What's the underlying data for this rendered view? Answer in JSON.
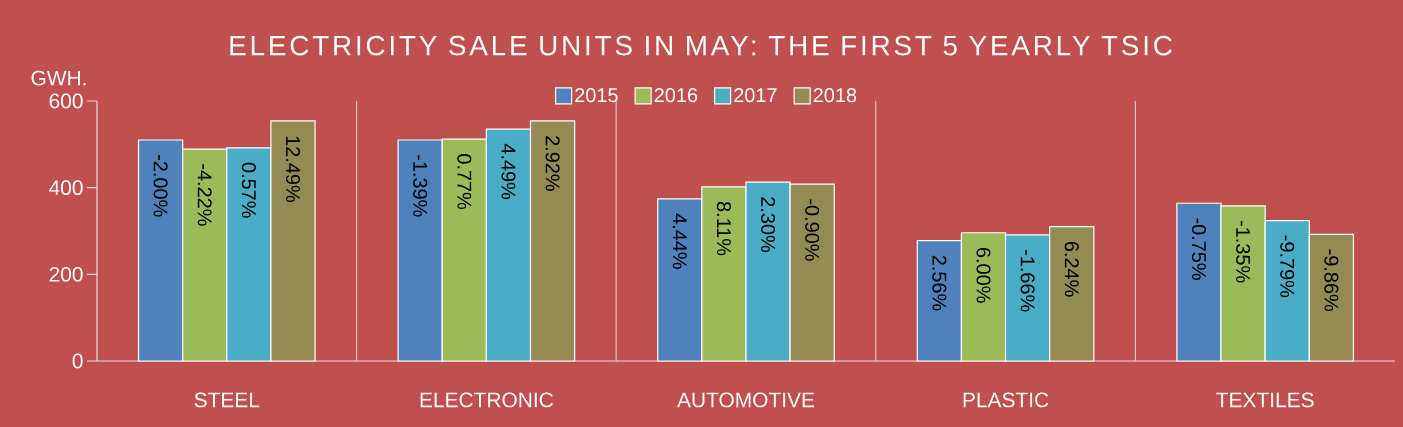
{
  "chart_data": {
    "type": "bar",
    "title": "ELECTRICITY SALE UNITS IN MAY: THE FIRST 5 YEARLY TSIC",
    "ylabel": "GWH.",
    "categories": [
      "STEEL",
      "ELECTRONIC",
      "AUTOMOTIVE",
      "PLASTIC",
      "TEXTILES"
    ],
    "series": [
      {
        "name": "2015",
        "color": "#4f81bd",
        "values": [
          510,
          510,
          374,
          278,
          364
        ]
      },
      {
        "name": "2016",
        "color": "#9bbb59",
        "values": [
          489,
          512,
          402,
          296,
          358
        ]
      },
      {
        "name": "2017",
        "color": "#4bacc6",
        "values": [
          492,
          535,
          413,
          291,
          324
        ]
      },
      {
        "name": "2018",
        "color": "#948a54",
        "values": [
          554,
          554,
          408,
          310,
          292
        ]
      }
    ],
    "annotations": [
      "-2.00%",
      "-1.39%",
      "4.44%",
      "2.56%",
      "-0.75%",
      "-4.22%",
      "0.77%",
      "8.11%",
      "6.00%",
      "-1.35%",
      "0.57%",
      "4.49%",
      "2.30%",
      "-1.66%",
      "-9.79%",
      "12.49%",
      "2.92%",
      "-0.90%",
      "6.24%",
      "-9.86%"
    ],
    "ylim": [
      0,
      600
    ],
    "yticks": [
      0,
      200,
      400,
      600
    ],
    "grid": "x",
    "legend": "top"
  }
}
